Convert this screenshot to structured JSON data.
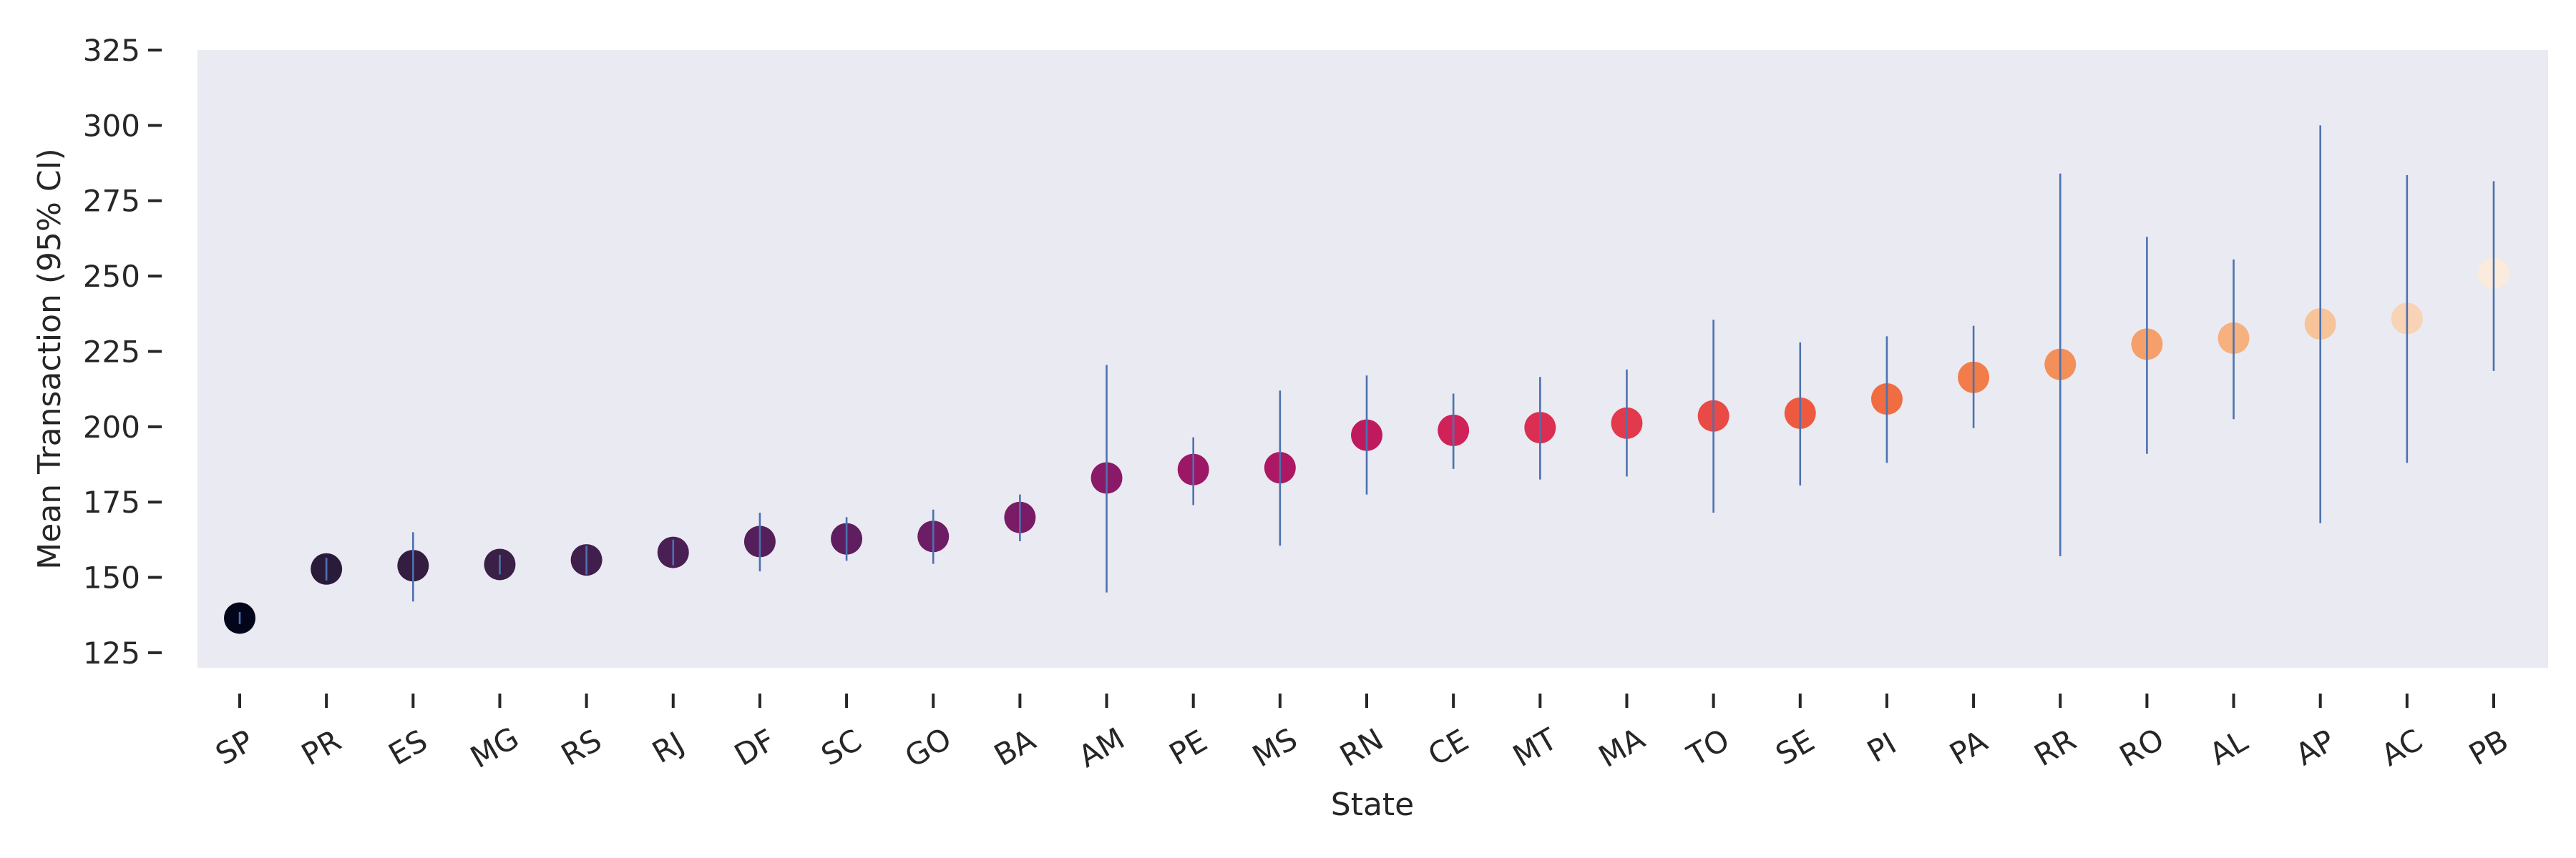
{
  "chart_data": {
    "type": "scatter",
    "title": "",
    "xlabel": "State",
    "ylabel": "Mean Transaction (95% CI)",
    "ylim": [
      120,
      325
    ],
    "yticks": [
      125,
      150,
      175,
      200,
      225,
      250,
      275,
      300,
      325
    ],
    "grid": false,
    "legend": "none",
    "colors": {
      "plot_background": "#eaeaf2",
      "error_bar": "#4c72b0",
      "text": "#262626"
    },
    "categories": [
      "SP",
      "PR",
      "ES",
      "MG",
      "RS",
      "RJ",
      "DF",
      "SC",
      "GO",
      "BA",
      "AM",
      "PE",
      "MS",
      "RN",
      "CE",
      "MT",
      "MA",
      "TO",
      "SE",
      "PI",
      "PA",
      "RR",
      "RO",
      "AL",
      "AP",
      "AC",
      "PB"
    ],
    "series": [
      {
        "values": [
          136.5,
          152.8,
          153.9,
          154.3,
          155.8,
          158.3,
          161.9,
          162.8,
          163.6,
          169.9,
          183.0,
          185.8,
          186.4,
          197.2,
          198.8,
          199.7,
          201.2,
          203.6,
          204.5,
          209.2,
          216.4,
          220.7,
          227.4,
          229.4,
          234.1,
          235.9,
          250.9
        ],
        "ci_low": [
          134.5,
          149.0,
          142.0,
          151.0,
          151.0,
          154.0,
          152.0,
          155.5,
          154.5,
          162.0,
          145.0,
          174.0,
          160.5,
          177.5,
          186.0,
          182.5,
          183.5,
          171.5,
          180.5,
          188.0,
          199.5,
          157.0,
          191.0,
          202.5,
          168.0,
          188.0,
          218.5
        ],
        "ci_high": [
          138.5,
          156.5,
          165.0,
          157.5,
          160.5,
          162.5,
          171.5,
          170.0,
          172.5,
          177.5,
          220.5,
          196.5,
          212.0,
          217.0,
          211.0,
          216.5,
          219.0,
          235.5,
          228.0,
          230.0,
          233.5,
          284.0,
          263.0,
          255.5,
          300.0,
          283.5,
          281.5
        ],
        "colors": [
          "#03051a",
          "#2b1b3b",
          "#341d41",
          "#3a1f47",
          "#411f4d",
          "#4a1f54",
          "#551f5b",
          "#5f1e60",
          "#6c1d64",
          "#7a1b66",
          "#8a1a67",
          "#9c1866",
          "#ad1763",
          "#bf1a5e",
          "#d02259",
          "#db2e52",
          "#e3394c",
          "#e94a45",
          "#ee5a40",
          "#f06c41",
          "#f27d4a",
          "#f38f58",
          "#f5a06a",
          "#f6b17f",
          "#f7c398",
          "#f8d3b5",
          "#faebdd"
        ]
      }
    ]
  }
}
